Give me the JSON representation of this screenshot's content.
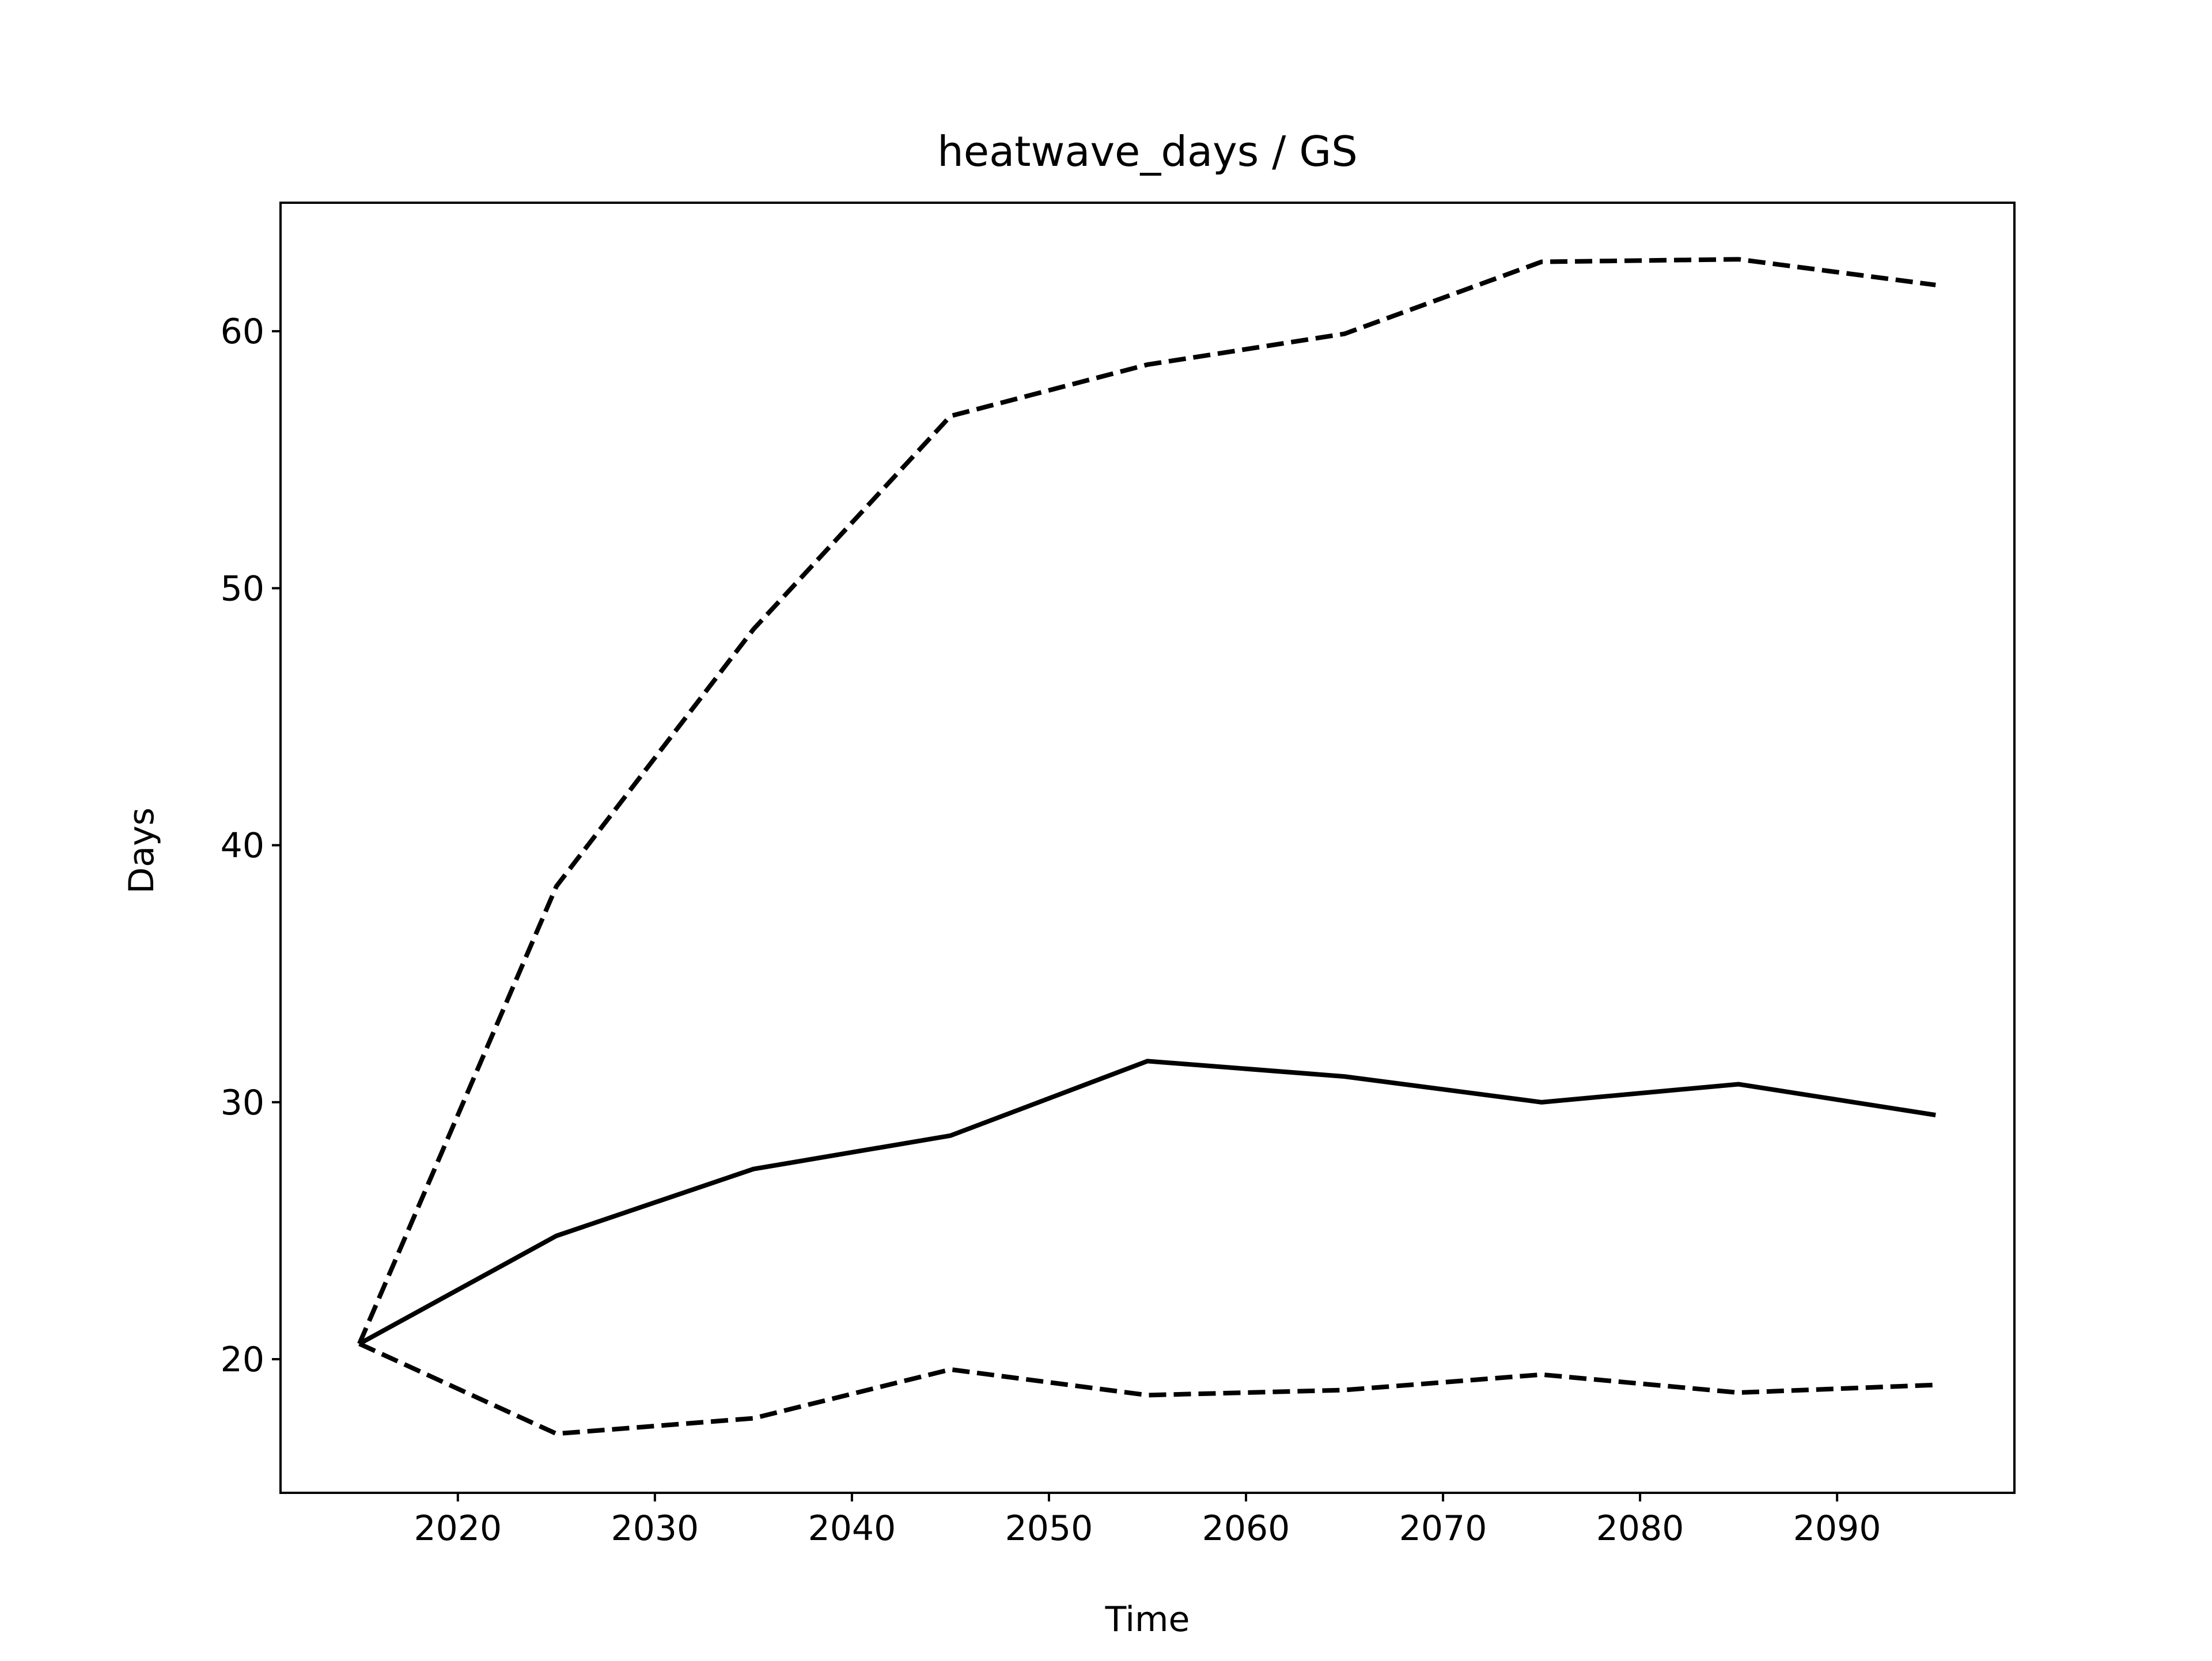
{
  "chart_data": {
    "type": "line",
    "title": "heatwave_days / GS",
    "xlabel": "Time",
    "ylabel": "Days",
    "xlim": [
      2011,
      2099
    ],
    "ylim": [
      14.8,
      65.0
    ],
    "x_ticks": [
      2020,
      2030,
      2040,
      2050,
      2060,
      2070,
      2080,
      2090
    ],
    "y_ticks": [
      20,
      30,
      40,
      50,
      60
    ],
    "grid": false,
    "x": [
      2015,
      2025,
      2035,
      2045,
      2055,
      2065,
      2075,
      2085,
      2095
    ],
    "series": [
      {
        "style": "solid",
        "color": "#000000",
        "values": [
          20.6,
          24.8,
          27.4,
          28.7,
          31.6,
          31.0,
          30.0,
          30.7,
          29.5
        ]
      },
      {
        "style": "dashed",
        "color": "#000000",
        "values": [
          20.6,
          38.4,
          48.4,
          56.7,
          58.7,
          59.9,
          62.7,
          62.8,
          61.8
        ]
      },
      {
        "style": "dashed",
        "color": "#000000",
        "values": [
          20.6,
          17.1,
          17.7,
          19.6,
          18.6,
          18.8,
          19.4,
          18.7,
          19.0
        ]
      }
    ]
  }
}
